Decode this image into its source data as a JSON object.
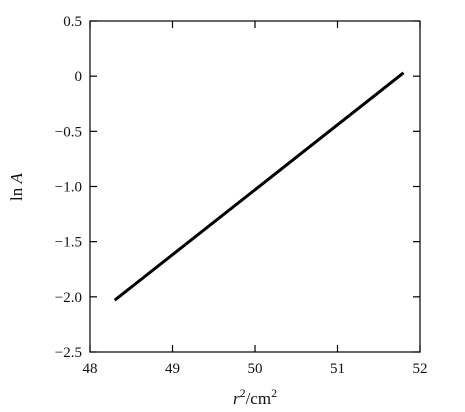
{
  "chart_data": {
    "type": "line",
    "title": "",
    "xlabel_main": "r",
    "xlabel_sup1": "2",
    "xlabel_unit": "/cm",
    "xlabel_sup2": "2",
    "ylabel_main": "ln ",
    "ylabel_var": "A",
    "xlim": [
      48,
      52
    ],
    "ylim": [
      -2.5,
      0.5
    ],
    "x_ticks": [
      48,
      49,
      50,
      51,
      52
    ],
    "x_tick_labels": [
      "48",
      "49",
      "50",
      "51",
      "52"
    ],
    "y_ticks": [
      0.5,
      0,
      -0.5,
      -1.0,
      -1.5,
      -2.0,
      -2.5
    ],
    "y_tick_labels": [
      "0.5",
      "0",
      "−0.5",
      "−1.0",
      "−1.5",
      "−2.0",
      "−2.5"
    ],
    "grid": false,
    "series": [
      {
        "x": [
          48.3,
          51.8
        ],
        "y": [
          -2.03,
          0.03
        ],
        "color": "#000000"
      }
    ]
  }
}
